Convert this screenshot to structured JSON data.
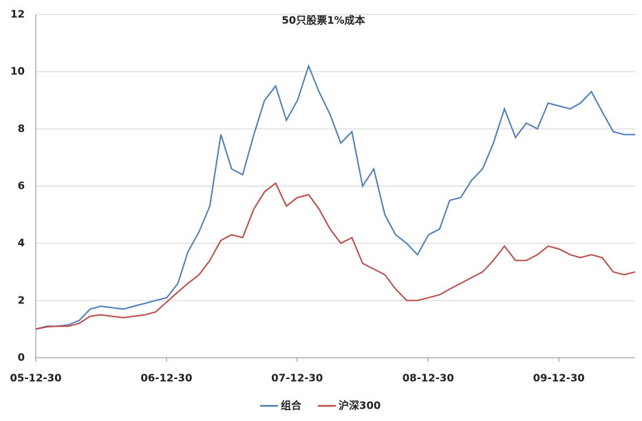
{
  "chart_data": {
    "type": "line",
    "title": "50只股票1%成本",
    "x": [
      "2005-12-30",
      "2006-01-31",
      "2006-02-28",
      "2006-03-31",
      "2006-04-30",
      "2006-05-31",
      "2006-06-30",
      "2006-07-31",
      "2006-08-31",
      "2006-09-30",
      "2006-10-31",
      "2006-11-30",
      "2006-12-31",
      "2007-01-31",
      "2007-02-28",
      "2007-03-31",
      "2007-04-30",
      "2007-05-31",
      "2007-06-30",
      "2007-07-31",
      "2007-08-31",
      "2007-09-30",
      "2007-10-31",
      "2007-11-30",
      "2007-12-31",
      "2008-01-31",
      "2008-02-29",
      "2008-03-31",
      "2008-04-30",
      "2008-05-31",
      "2008-06-30",
      "2008-07-31",
      "2008-08-31",
      "2008-09-30",
      "2008-10-31",
      "2008-11-30",
      "2008-12-31",
      "2009-01-31",
      "2009-02-28",
      "2009-03-31",
      "2009-04-30",
      "2009-05-31",
      "2009-06-30",
      "2009-07-31",
      "2009-08-31",
      "2009-09-30",
      "2009-10-31",
      "2009-11-30",
      "2009-12-31",
      "2010-01-31",
      "2010-02-28",
      "2010-03-31",
      "2010-04-30",
      "2010-05-31",
      "2010-06-30",
      "2010-07-31"
    ],
    "series": [
      {
        "name": "组合",
        "color": "#4a7ebb",
        "values": [
          1.0,
          1.1,
          1.1,
          1.15,
          1.3,
          1.7,
          1.8,
          1.75,
          1.7,
          1.8,
          1.9,
          2.0,
          2.1,
          2.6,
          3.7,
          4.4,
          5.3,
          7.8,
          6.6,
          6.4,
          7.8,
          9.0,
          9.5,
          8.3,
          9.0,
          10.2,
          9.3,
          8.5,
          7.5,
          7.9,
          6.0,
          6.6,
          5.0,
          4.3,
          4.0,
          3.6,
          4.3,
          4.5,
          5.5,
          5.6,
          6.2,
          6.6,
          7.5,
          8.7,
          7.7,
          8.2,
          8.0,
          8.9,
          8.8,
          8.7,
          8.9,
          9.3,
          8.6,
          7.9,
          7.8,
          7.8
        ]
      },
      {
        "name": "沪深300",
        "color": "#be4b48",
        "values": [
          1.0,
          1.08,
          1.1,
          1.1,
          1.2,
          1.45,
          1.5,
          1.45,
          1.4,
          1.45,
          1.5,
          1.6,
          1.95,
          2.3,
          2.6,
          2.9,
          3.4,
          4.1,
          4.3,
          4.2,
          5.2,
          5.8,
          6.1,
          5.3,
          5.6,
          5.7,
          5.2,
          4.5,
          4.0,
          4.2,
          3.3,
          3.1,
          2.9,
          2.4,
          2.0,
          2.0,
          2.1,
          2.2,
          2.4,
          2.6,
          2.8,
          3.0,
          3.4,
          3.9,
          3.4,
          3.4,
          3.6,
          3.9,
          3.8,
          3.6,
          3.5,
          3.6,
          3.5,
          3.0,
          2.9,
          3.0
        ]
      }
    ],
    "xlim": [
      "2005-12-30",
      "2010-07-31"
    ],
    "xticks": [
      {
        "value": "2005-12-30",
        "label": "05-12-30"
      },
      {
        "value": "2006-12-30",
        "label": "06-12-30"
      },
      {
        "value": "2007-12-30",
        "label": "07-12-30"
      },
      {
        "value": "2008-12-30",
        "label": "08-12-30"
      },
      {
        "value": "2009-12-30",
        "label": "09-12-30"
      }
    ],
    "ylim": [
      0,
      12
    ],
    "yticks": [
      0,
      2,
      4,
      6,
      8,
      10,
      12
    ],
    "grid": true,
    "legend": "bottom"
  }
}
